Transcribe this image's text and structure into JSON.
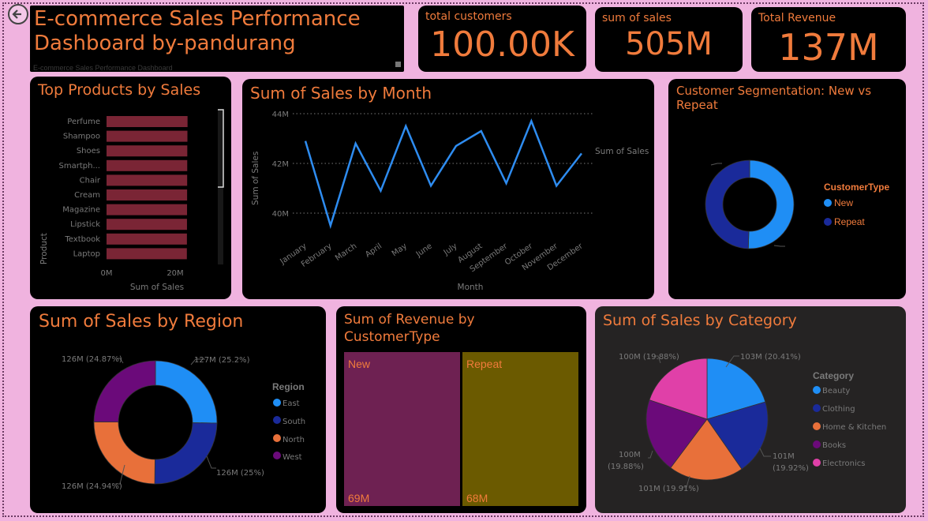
{
  "header": {
    "title_line1": "E-commerce Sales Performance",
    "title_line2": "Dashboard by-pandurang",
    "subtitle": "E-commerce Sales Performance Dashboard"
  },
  "kpis": {
    "customers_label": "total customers",
    "customers_value": "100.00K",
    "sales_label": "sum of sales",
    "sales_value": "505M",
    "revenue_label": "Total Revenue",
    "revenue_value": "137M"
  },
  "colors": {
    "accent": "#f07b3c",
    "bar": "#7a2535",
    "line": "#2e8cf0",
    "new": "#1f8ef5",
    "repeat": "#1a2a9a",
    "east": "#1f8ef5",
    "south": "#1a2a9a",
    "north": "#e8703a",
    "west": "#6b0a7a",
    "beauty": "#1f8ef5",
    "clothing": "#1a2a9a",
    "home": "#e8703a",
    "books": "#6b0a7a",
    "electronics": "#e040a8",
    "tree_new": "#6e2152",
    "tree_repeat": "#6b5a00"
  },
  "top_products": {
    "title": "Top Products by Sales",
    "ylabel": "Product",
    "xlabel": "Sum of Sales",
    "ticks": [
      "0M",
      "20M"
    ]
  },
  "monthly": {
    "title": "Sum of Sales by Month",
    "ylabel": "Sum of Sales",
    "xlabel": "Month",
    "series_label": "Sum of Sales",
    "yticks": [
      "44M",
      "42M",
      "40M"
    ]
  },
  "segmentation": {
    "title_line1": "Customer Segmentation: New vs",
    "title_line2": "Repeat",
    "legend_title": "CustomerType",
    "legend": [
      "New",
      "Repeat"
    ]
  },
  "region": {
    "title": "Sum of Sales by Region",
    "legend_title": "Region",
    "legend": [
      "East",
      "South",
      "North",
      "West"
    ],
    "labels": [
      "127M (25.2%)",
      "126M (25%)",
      "126M (24.94%)",
      "126M (24.87%)"
    ]
  },
  "revenue_type": {
    "title_line1": "Sum of Revenue by",
    "title_line2": "CustomerType",
    "new_label": "New",
    "new_value": "69M",
    "repeat_label": "Repeat",
    "repeat_value": "68M"
  },
  "category": {
    "title": "Sum of Sales by Category",
    "legend_title": "Category",
    "legend": [
      "Beauty",
      "Clothing",
      "Home & Kitchen",
      "Books",
      "Electronics"
    ],
    "labels": [
      "103M (20.41%)",
      "101M",
      "(19.92%)",
      "101M (19.91%)",
      "100M",
      "(19.88%)",
      "100M (19.88%)"
    ]
  },
  "chart_data": [
    {
      "type": "bar",
      "orientation": "horizontal",
      "title": "Top Products by Sales",
      "xlabel": "Sum of Sales",
      "ylabel": "Product",
      "categories": [
        "Perfume",
        "Shampoo",
        "Shoes",
        "Smartph...",
        "Chair",
        "Cream",
        "Magazine",
        "Lipstick",
        "Textbook",
        "Laptop"
      ],
      "values": [
        51.0,
        50.8,
        50.6,
        50.5,
        50.4,
        50.3,
        50.2,
        50.1,
        50.0,
        49.9
      ],
      "unit": "M",
      "xlim": [
        0,
        45
      ]
    },
    {
      "type": "line",
      "title": "Sum of Sales by Month",
      "xlabel": "Month",
      "ylabel": "Sum of Sales",
      "categories": [
        "January",
        "February",
        "March",
        "April",
        "May",
        "June",
        "July",
        "August",
        "September",
        "October",
        "November",
        "December"
      ],
      "series": [
        {
          "name": "Sum of Sales",
          "values": [
            42.9,
            39.5,
            42.8,
            40.9,
            43.5,
            41.1,
            42.7,
            43.3,
            41.2,
            43.7,
            41.1,
            42.4
          ]
        }
      ],
      "unit": "M",
      "ylim": [
        39.5,
        44
      ]
    },
    {
      "type": "pie",
      "title": "Customer Segmentation: New vs Repeat",
      "categories": [
        "New",
        "Repeat"
      ],
      "values": [
        50.5,
        49.5
      ]
    },
    {
      "type": "pie",
      "title": "Sum of Sales by Region",
      "categories": [
        "East",
        "South",
        "North",
        "West"
      ],
      "values": [
        25.2,
        25.0,
        24.94,
        24.87
      ]
    },
    {
      "type": "bar",
      "title": "Sum of Revenue by CustomerType",
      "categories": [
        "New",
        "Repeat"
      ],
      "values": [
        69,
        68
      ],
      "unit": "M"
    },
    {
      "type": "pie",
      "title": "Sum of Sales by Category",
      "categories": [
        "Beauty",
        "Clothing",
        "Home & Kitchen",
        "Books",
        "Electronics"
      ],
      "values": [
        20.41,
        19.92,
        19.91,
        19.88,
        19.88
      ]
    }
  ]
}
